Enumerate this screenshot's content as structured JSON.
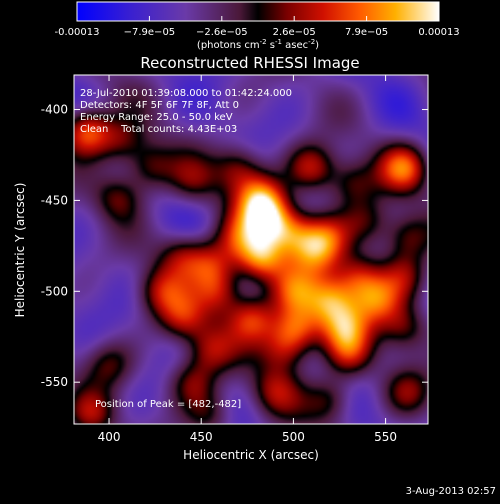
{
  "chart_data": {
    "type": "heatmap",
    "title": "Reconstructed RHESSI Image",
    "xlabel": "Heliocentric X (arcsec)",
    "ylabel": "Heliocentric Y (arcsec)",
    "xlim": [
      381,
      573
    ],
    "ylim": [
      -573,
      -381
    ],
    "xticks": [
      400,
      450,
      500,
      550
    ],
    "yticks": [
      -400,
      -450,
      -500,
      -550
    ],
    "colorbar": {
      "min": -0.00013,
      "max": 0.00013,
      "tick_labels": [
        "-0.00013",
        "−7.9e−05",
        "−2.6e−05",
        "2.6e−05",
        "7.9e−05",
        "0.00013"
      ],
      "units_prefix": "(photons cm",
      "units_sup1": "-2",
      "units_mid": " s",
      "units_sup2": "-1",
      "units_mid2": " asec",
      "units_sup3": "-2",
      "units_suffix": ")"
    },
    "annotations": [
      "28-Jul-2010 01:39:08.000 to 01:42:24.000",
      "Detectors: 4F 5F 6F 7F 8F, Att 0",
      "Energy Range: 25.0 - 50.0 keV",
      "Clean    Total counts: 4.43E+03"
    ],
    "peak_label": "Position of Peak = [482,-482]",
    "peak": [
      482,
      -482
    ],
    "intensity_blobs": [
      {
        "x": 388,
        "y": -412,
        "v": 1.0
      },
      {
        "x": 407,
        "y": -418,
        "v": 0.55
      },
      {
        "x": 422,
        "y": -432,
        "v": 0.6
      },
      {
        "x": 445,
        "y": -440,
        "v": 0.4
      },
      {
        "x": 470,
        "y": -432,
        "v": 0.6
      },
      {
        "x": 510,
        "y": -432,
        "v": 0.7
      },
      {
        "x": 532,
        "y": -440,
        "v": 0.5
      },
      {
        "x": 560,
        "y": -432,
        "v": 0.85
      },
      {
        "x": 405,
        "y": -448,
        "v": 0.5
      },
      {
        "x": 482,
        "y": -448,
        "v": 0.85
      },
      {
        "x": 486,
        "y": -460,
        "v": 0.95
      },
      {
        "x": 500,
        "y": -468,
        "v": 0.75
      },
      {
        "x": 470,
        "y": -470,
        "v": 0.55
      },
      {
        "x": 518,
        "y": -470,
        "v": 0.7
      },
      {
        "x": 540,
        "y": -462,
        "v": 0.45
      },
      {
        "x": 562,
        "y": -470,
        "v": 0.55
      },
      {
        "x": 440,
        "y": -480,
        "v": 0.55
      },
      {
        "x": 456,
        "y": -485,
        "v": 0.65
      },
      {
        "x": 482,
        "y": -482,
        "v": 1.0
      },
      {
        "x": 512,
        "y": -480,
        "v": 0.6
      },
      {
        "x": 535,
        "y": -492,
        "v": 0.7
      },
      {
        "x": 560,
        "y": -492,
        "v": 0.55
      },
      {
        "x": 428,
        "y": -500,
        "v": 0.6
      },
      {
        "x": 460,
        "y": -500,
        "v": 0.65
      },
      {
        "x": 500,
        "y": -500,
        "v": 0.7
      },
      {
        "x": 520,
        "y": -505,
        "v": 0.85
      },
      {
        "x": 545,
        "y": -505,
        "v": 0.75
      },
      {
        "x": 440,
        "y": -515,
        "v": 0.65
      },
      {
        "x": 478,
        "y": -515,
        "v": 0.8
      },
      {
        "x": 502,
        "y": -520,
        "v": 0.9
      },
      {
        "x": 528,
        "y": -520,
        "v": 0.75
      },
      {
        "x": 560,
        "y": -520,
        "v": 0.55
      },
      {
        "x": 455,
        "y": -532,
        "v": 0.55
      },
      {
        "x": 495,
        "y": -532,
        "v": 0.65
      },
      {
        "x": 530,
        "y": -535,
        "v": 0.6
      },
      {
        "x": 400,
        "y": -540,
        "v": 0.45
      },
      {
        "x": 445,
        "y": -550,
        "v": 0.55
      },
      {
        "x": 490,
        "y": -555,
        "v": 0.5
      },
      {
        "x": 520,
        "y": -560,
        "v": 0.55
      },
      {
        "x": 562,
        "y": -555,
        "v": 0.45
      },
      {
        "x": 390,
        "y": -568,
        "v": 0.55
      },
      {
        "x": 455,
        "y": -568,
        "v": 0.45
      }
    ]
  },
  "footer": {
    "timestamp": "3-Aug-2013 02:57"
  },
  "colors": {
    "background": "#000000",
    "foreground": "#ffffff"
  }
}
